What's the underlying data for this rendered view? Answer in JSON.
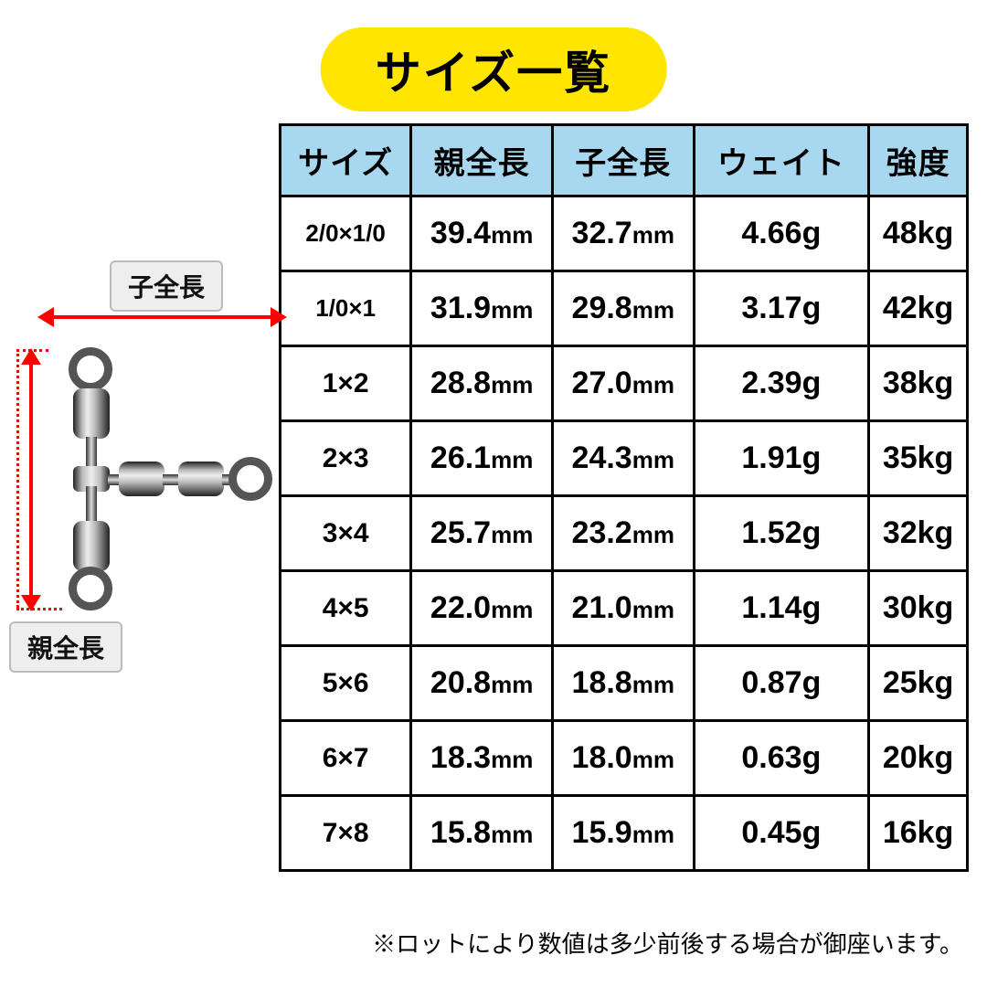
{
  "title": "サイズ一覧",
  "diagram": {
    "child_label": "子全長",
    "parent_label": "親全長",
    "arrow_color": "#ff0000",
    "label_bg": "#eeeeee",
    "label_border": "#bbbbbb"
  },
  "table": {
    "header_bg": "#a7d8ef",
    "border_color": "#000000",
    "cell_bg": "#ffffff",
    "header_fontsize": 34,
    "cell_fontsize": 34,
    "columns": [
      "サイズ",
      "親全長",
      "子全長",
      "ウェイト",
      "強度"
    ],
    "rows": [
      {
        "size": "2/0×1/0",
        "parent_len": "39.4",
        "child_len": "32.7",
        "weight": "4.66",
        "strength": "48"
      },
      {
        "size": "1/0×1",
        "parent_len": "31.9",
        "child_len": "29.8",
        "weight": "3.17",
        "strength": "42"
      },
      {
        "size": "1×2",
        "parent_len": "28.8",
        "child_len": "27.0",
        "weight": "2.39",
        "strength": "38"
      },
      {
        "size": "2×3",
        "parent_len": "26.1",
        "child_len": "24.3",
        "weight": "1.91",
        "strength": "35"
      },
      {
        "size": "3×4",
        "parent_len": "25.7",
        "child_len": "23.2",
        "weight": "1.52",
        "strength": "32"
      },
      {
        "size": "4×5",
        "parent_len": "22.0",
        "child_len": "21.0",
        "weight": "1.14",
        "strength": "30"
      },
      {
        "size": "5×6",
        "parent_len": "20.8",
        "child_len": "18.8",
        "weight": "0.87",
        "strength": "25"
      },
      {
        "size": "6×7",
        "parent_len": "18.3",
        "child_len": "18.0",
        "weight": "0.63",
        "strength": "20"
      },
      {
        "size": "7×8",
        "parent_len": "15.8",
        "child_len": "15.9",
        "weight": "0.45",
        "strength": "16"
      }
    ],
    "units": {
      "length": "mm",
      "weight": "g",
      "strength": "kg"
    }
  },
  "footnote": "※ロットにより数値は多少前後する場合が御座います。",
  "colors": {
    "title_bg": "#ffe500",
    "title_text": "#000000",
    "background": "#ffffff",
    "text": "#000000"
  }
}
